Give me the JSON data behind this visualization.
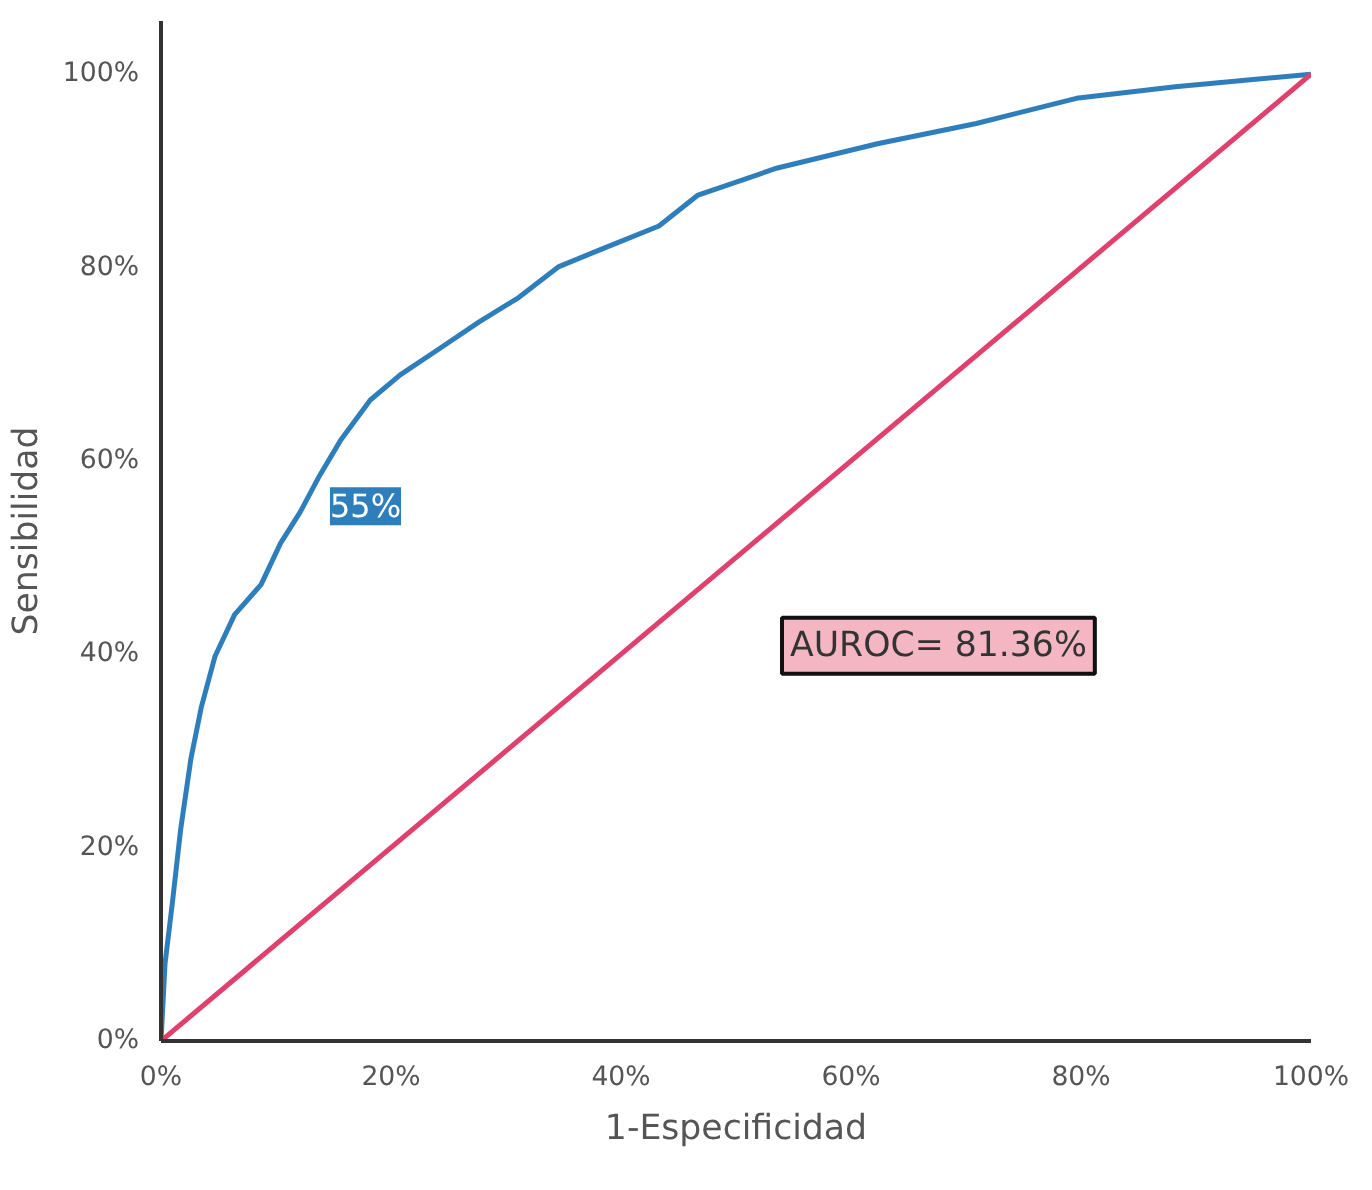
{
  "chart_data": {
    "type": "line",
    "xlabel": "1-Especificidad",
    "ylabel": "Sensibilidad",
    "xlim": [
      0,
      100
    ],
    "ylim": [
      0,
      105.5
    ],
    "xticks": [
      {
        "value": 0,
        "label": "0%"
      },
      {
        "value": 20,
        "label": "20%"
      },
      {
        "value": 40,
        "label": "40%"
      },
      {
        "value": 60,
        "label": "60%"
      },
      {
        "value": 80,
        "label": "80%"
      },
      {
        "value": 100,
        "label": "100%"
      }
    ],
    "yticks": [
      {
        "value": 0,
        "label": "0%"
      },
      {
        "value": 20,
        "label": "20%"
      },
      {
        "value": 40,
        "label": "40%"
      },
      {
        "value": 60,
        "label": "60%"
      },
      {
        "value": 80,
        "label": "80%"
      },
      {
        "value": 100,
        "label": "100%"
      }
    ],
    "grid": false,
    "series": [
      {
        "color": "#2f7ebc",
        "x": [
          0,
          0.35,
          1,
          1.7,
          2.6,
          3.5,
          4.7,
          6.4,
          8.7,
          10.4,
          12.1,
          13.8,
          15.6,
          18.2,
          20.8,
          24.2,
          27.7,
          31.1,
          34.6,
          38.1,
          43.3,
          46.7,
          53.6,
          62.3,
          70.9,
          79.6,
          88.2,
          100
        ],
        "values": [
          0,
          8,
          14.4,
          21.8,
          29.2,
          34.5,
          39.8,
          44.1,
          47.2,
          51.5,
          54.7,
          58.5,
          62.1,
          66.3,
          68.9,
          71.6,
          74.4,
          76.9,
          80.1,
          81.8,
          84.3,
          87.5,
          90.3,
          92.8,
          94.9,
          97.5,
          98.7,
          100
        ]
      },
      {
        "color": "#e0406e",
        "x": [
          0,
          100
        ],
        "values": [
          0,
          100
        ]
      }
    ],
    "annotations": [
      {
        "text": "55%",
        "x": 13.3,
        "y": 55
      },
      "AUROC= 81.36%"
    ]
  }
}
